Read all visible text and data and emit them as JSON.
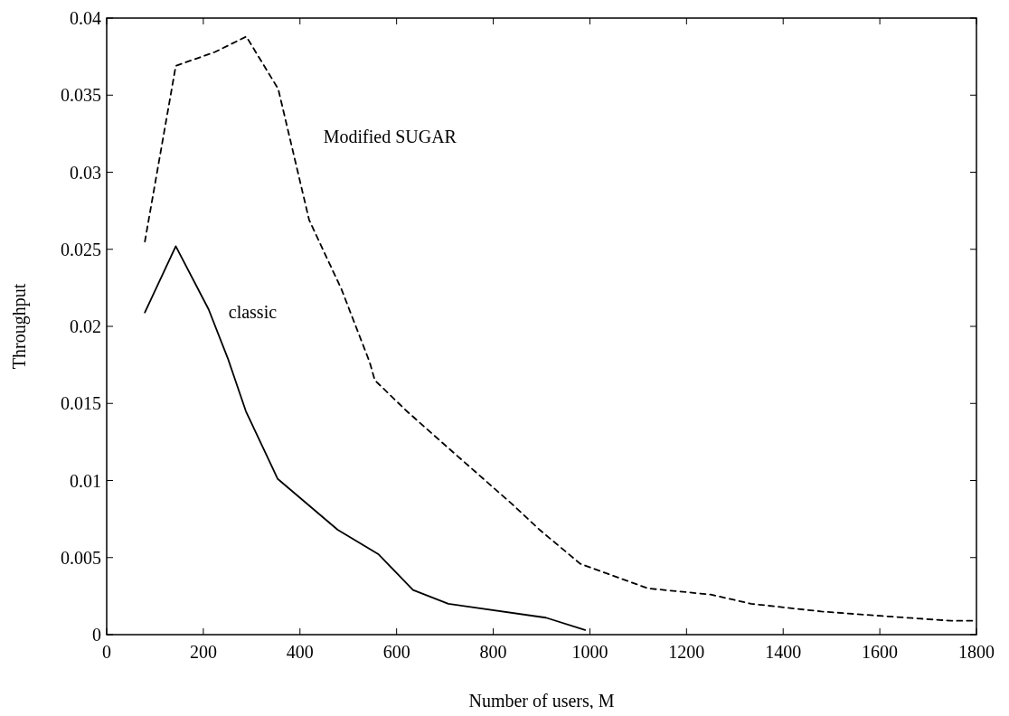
{
  "chart_data": {
    "type": "line",
    "xlabel": "Number of users, M",
    "ylabel": "Throughput",
    "xlim": [
      0,
      1800
    ],
    "xticks": [
      0,
      200,
      400,
      600,
      800,
      1000,
      1200,
      1400,
      1600,
      1800
    ],
    "ylim": [
      0,
      0.04
    ],
    "yticks": [
      0,
      0.005,
      0.01,
      0.015,
      0.02,
      0.025,
      0.03,
      0.035,
      0.04
    ],
    "grid": false,
    "marker": "none",
    "series": [
      {
        "name": "Modified SUGAR",
        "color": "#000000",
        "line_style": "dashed",
        "x": [
          79,
          143,
          224,
          289,
          355,
          419,
          486,
          544,
          555,
          621,
          700,
          838,
          896,
          980,
          1120,
          1250,
          1334,
          1479,
          1609,
          1747,
          1800
        ],
        "values": [
          0.0255,
          0.0369,
          0.0378,
          0.0388,
          0.0354,
          0.0269,
          0.0224,
          0.0177,
          0.0165,
          0.0145,
          0.0123,
          0.0085,
          0.0068,
          0.0046,
          0.003,
          0.0026,
          0.002,
          0.0015,
          0.0012,
          0.0009,
          0.0009
        ]
      },
      {
        "name": "classic",
        "color": "#000000",
        "line_style": "solid",
        "x": [
          79,
          143,
          211,
          251,
          288,
          354,
          478,
          563,
          634,
          707,
          909,
          990
        ],
        "values": [
          0.0209,
          0.0252,
          0.0211,
          0.0179,
          0.0145,
          0.0101,
          0.0068,
          0.0052,
          0.0029,
          0.002,
          0.0011,
          0.0003
        ]
      }
    ]
  }
}
